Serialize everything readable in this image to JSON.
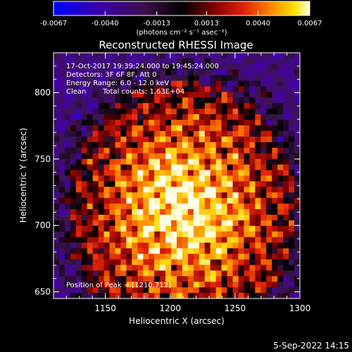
{
  "chart_data": {
    "type": "heatmap",
    "title": "Reconstructed RHESSI Image",
    "xlabel": "Heliocentric X (arcsec)",
    "ylabel": "Heliocentric Y (arcsec)",
    "xlim": [
      1110,
      1300
    ],
    "ylim": [
      645,
      830
    ],
    "x_ticks": [
      "1150",
      "1200",
      "1250",
      "1300"
    ],
    "y_ticks": [
      "650",
      "700",
      "750",
      "800"
    ],
    "x_tick_values": [
      1150,
      1200,
      1250,
      1300
    ],
    "y_tick_values": [
      650,
      700,
      750,
      800
    ],
    "colorbar": {
      "ticks": [
        "-0.0067",
        "-0.0040",
        "-0.0013",
        "0.0013",
        "0.0040",
        "0.0067"
      ],
      "range": [
        -0.0067,
        0.0067
      ],
      "units": "(photons cm⁻² s⁻¹ asec⁻²)",
      "colormap": [
        "#0000ff",
        "#2a00b0",
        "#4a1a6a",
        "#000000",
        "#8b0000",
        "#e0200a",
        "#ff7f00",
        "#ffd200",
        "#ffffc0",
        "#ffffff"
      ]
    },
    "annotations": {
      "time": "17-Oct-2017 19:39:24.000 to 19:45:24.000",
      "detectors": "Detectors: 3F 6F 8F, Att 0",
      "energy": "Energy Range: 6.0 - 12.0 keV",
      "method": "Clean",
      "counts": "Total counts: 1.63E+04",
      "peak": "Position of Peak = [1210,712]"
    },
    "peak_position": [
      1210,
      712
    ]
  },
  "footer": {
    "date": "5-Sep-2022 14:15"
  }
}
